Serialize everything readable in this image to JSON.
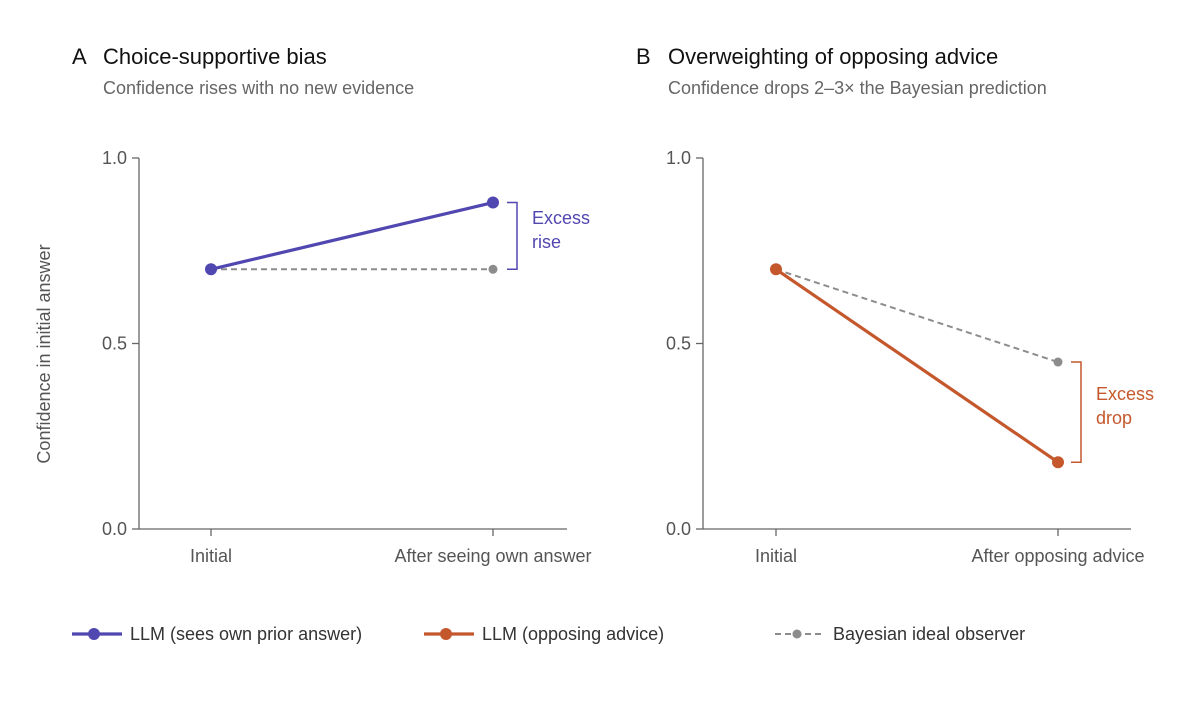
{
  "figure": {
    "ylabel": "Confidence in initial answer"
  },
  "colors": {
    "llm_self": "#5147b0",
    "llm_advice": "#c4582c",
    "bayesian": "#8c8c8c"
  },
  "chart_data": [
    {
      "type": "line",
      "panel_letter": "A",
      "title": "Choice-supportive bias",
      "subtitle": "Confidence rises with no new evidence",
      "categories": [
        "Initial",
        "After seeing own answer"
      ],
      "ylim": [
        0,
        1
      ],
      "yticks": [
        "0.0",
        "0.5",
        "1.0"
      ],
      "series": [
        {
          "key": "llm_self",
          "values": [
            0.7,
            0.88
          ],
          "style": "solid"
        },
        {
          "key": "bayesian",
          "values": [
            0.7,
            0.7
          ],
          "style": "dashed"
        }
      ],
      "annotation": {
        "lines": [
          "Excess",
          "rise"
        ],
        "from": 0.88,
        "to": 0.7,
        "color_key": "llm_self"
      }
    },
    {
      "type": "line",
      "panel_letter": "B",
      "title": "Overweighting of opposing advice",
      "subtitle": "Confidence drops 2–3× the Bayesian prediction",
      "categories": [
        "Initial",
        "After opposing advice"
      ],
      "ylim": [
        0,
        1
      ],
      "yticks": [
        "0.0",
        "0.5",
        "1.0"
      ],
      "series": [
        {
          "key": "llm_advice",
          "values": [
            0.7,
            0.18
          ],
          "style": "solid"
        },
        {
          "key": "bayesian",
          "values": [
            0.7,
            0.45
          ],
          "style": "dashed"
        }
      ],
      "annotation": {
        "lines": [
          "Excess",
          "drop"
        ],
        "from": 0.45,
        "to": 0.18,
        "color_key": "llm_advice"
      }
    }
  ],
  "legend": {
    "position": "bottom",
    "items": [
      {
        "label": "LLM (sees own prior answer)",
        "color_key": "llm_self",
        "style": "solid"
      },
      {
        "label": "LLM (opposing advice)",
        "color_key": "llm_advice",
        "style": "solid"
      },
      {
        "label": "Bayesian ideal observer",
        "color_key": "bayesian",
        "style": "dashed"
      }
    ]
  }
}
